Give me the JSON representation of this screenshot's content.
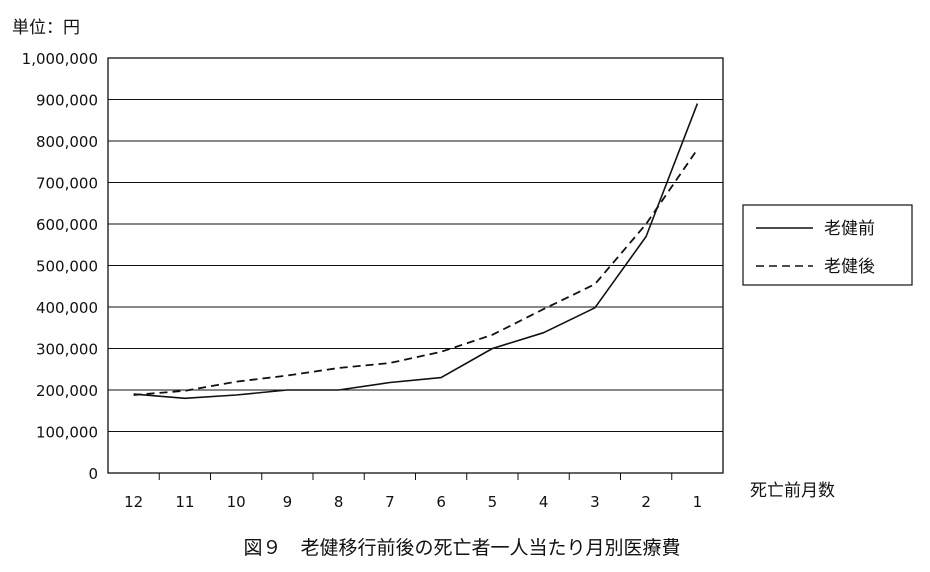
{
  "chart_data": {
    "type": "line",
    "title": "図９　老健移行前後の死亡者一人当たり月別医療費",
    "ylabel": "単位：円",
    "xlabel": "死亡前月数",
    "categories": [
      "12",
      "11",
      "10",
      "9",
      "8",
      "7",
      "6",
      "5",
      "4",
      "3",
      "2",
      "1"
    ],
    "ylim": [
      0,
      1000000
    ],
    "yticks": [
      0,
      100000,
      200000,
      300000,
      400000,
      500000,
      600000,
      700000,
      800000,
      900000,
      1000000
    ],
    "ytick_labels": [
      "0",
      "100,000",
      "200,000",
      "300,000",
      "400,000",
      "500,000",
      "600,000",
      "700,000",
      "800,000",
      "900,000",
      "1,000,000"
    ],
    "grid": true,
    "legend_position": "right",
    "series": [
      {
        "name": "老健前",
        "style": "solid",
        "values": [
          190000,
          180000,
          188000,
          200000,
          200000,
          218000,
          230000,
          300000,
          338000,
          398000,
          570000,
          890000
        ]
      },
      {
        "name": "老健後",
        "style": "dashed",
        "values": [
          188000,
          198000,
          220000,
          235000,
          253000,
          265000,
          292000,
          333000,
          395000,
          455000,
          600000,
          780000
        ]
      }
    ]
  },
  "colors": {
    "line": "#111111",
    "grid": "#111111",
    "background": "#ffffff"
  }
}
